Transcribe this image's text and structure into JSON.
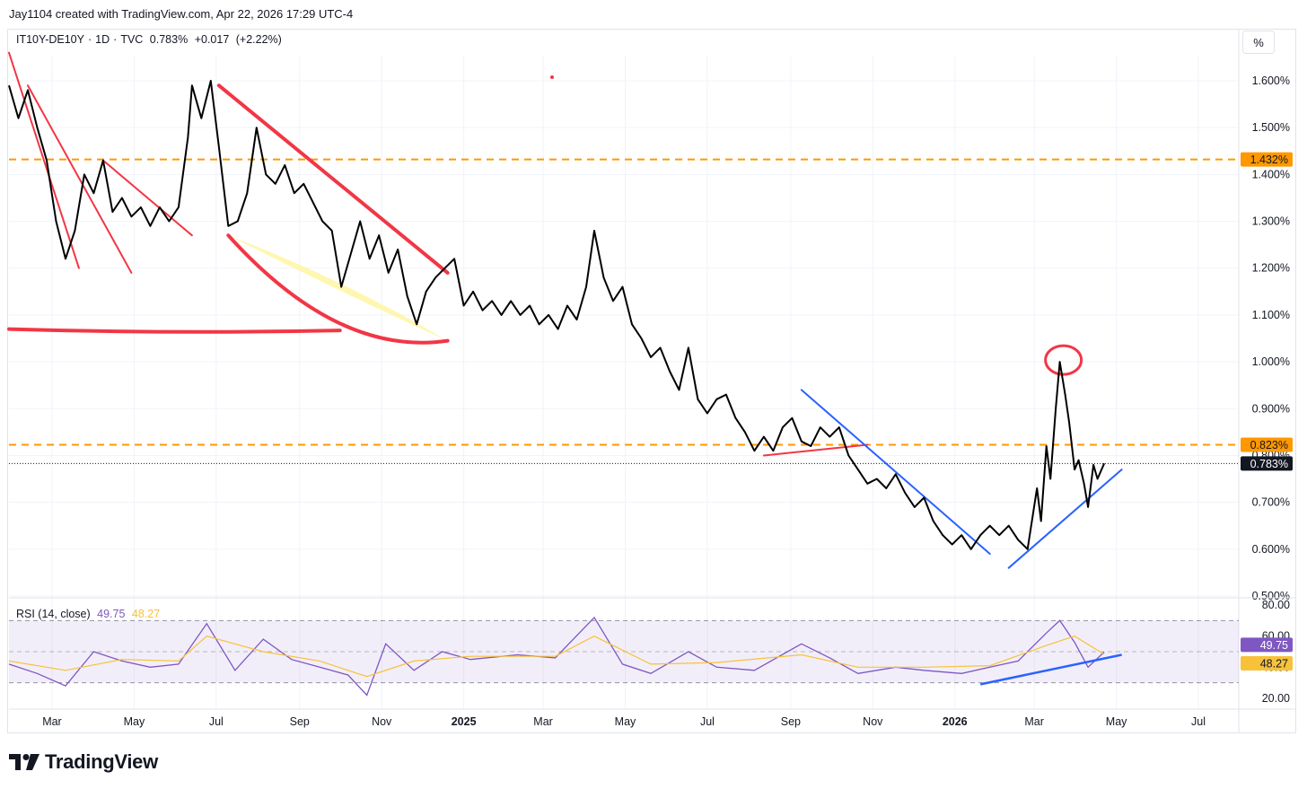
{
  "caption": "Jay1104 created with TradingView.com, Apr 22, 2026 17:29 UTC-4",
  "symbol": {
    "name": "IT10Y-DE10Y",
    "interval": "1D",
    "source": "TVC",
    "last": "0.783%",
    "change": "+0.017",
    "change_pct": "(+2.22%)"
  },
  "toolbar": {
    "percent_label": "%"
  },
  "brand": {
    "name": "TradingView"
  },
  "colors": {
    "price_line": "#000000",
    "rsi_line": "#7e57c2",
    "rsi_ma": "#f7c23a",
    "hline": "#ff9800",
    "trend_red": "#f23645",
    "trend_blue": "#2962ff",
    "fill_yellow": "#fff59d"
  },
  "chart_data": [
    {
      "type": "line",
      "title": "IT10Y-DE10Y · 1D · TVC",
      "y_unit": "%",
      "ylim": [
        0.5,
        1.65
      ],
      "y_ticks": [
        "1.600%",
        "1.500%",
        "1.400%",
        "1.300%",
        "1.200%",
        "1.100%",
        "1.000%",
        "0.900%",
        "0.800%",
        "0.700%",
        "0.600%",
        "0.500%"
      ],
      "x_ticks": [
        "Mar",
        "May",
        "Jul",
        "Sep",
        "Nov",
        "2025",
        "Mar",
        "May",
        "Jul",
        "Sep",
        "Nov",
        "2026",
        "Mar",
        "May",
        "Jul"
      ],
      "x_range": [
        "2024-01-29",
        "2026-07-31"
      ],
      "series": [
        {
          "points": [
            [
              "2024-01-29",
              1.59
            ],
            [
              "2024-02-05",
              1.52
            ],
            [
              "2024-02-12",
              1.58
            ],
            [
              "2024-02-19",
              1.5
            ],
            [
              "2024-02-26",
              1.43
            ],
            [
              "2024-03-04",
              1.3
            ],
            [
              "2024-03-11",
              1.22
            ],
            [
              "2024-03-18",
              1.28
            ],
            [
              "2024-03-25",
              1.4
            ],
            [
              "2024-04-01",
              1.36
            ],
            [
              "2024-04-08",
              1.43
            ],
            [
              "2024-04-15",
              1.32
            ],
            [
              "2024-04-22",
              1.35
            ],
            [
              "2024-04-29",
              1.31
            ],
            [
              "2024-05-06",
              1.33
            ],
            [
              "2024-05-13",
              1.29
            ],
            [
              "2024-05-20",
              1.33
            ],
            [
              "2024-05-27",
              1.3
            ],
            [
              "2024-06-03",
              1.33
            ],
            [
              "2024-06-10",
              1.48
            ],
            [
              "2024-06-13",
              1.59
            ],
            [
              "2024-06-20",
              1.52
            ],
            [
              "2024-06-27",
              1.6
            ],
            [
              "2024-07-03",
              1.46
            ],
            [
              "2024-07-10",
              1.29
            ],
            [
              "2024-07-17",
              1.3
            ],
            [
              "2024-07-24",
              1.36
            ],
            [
              "2024-07-31",
              1.5
            ],
            [
              "2024-08-07",
              1.4
            ],
            [
              "2024-08-14",
              1.38
            ],
            [
              "2024-08-21",
              1.42
            ],
            [
              "2024-08-28",
              1.36
            ],
            [
              "2024-09-04",
              1.38
            ],
            [
              "2024-09-11",
              1.34
            ],
            [
              "2024-09-18",
              1.3
            ],
            [
              "2024-09-25",
              1.28
            ],
            [
              "2024-10-02",
              1.16
            ],
            [
              "2024-10-09",
              1.23
            ],
            [
              "2024-10-16",
              1.3
            ],
            [
              "2024-10-23",
              1.22
            ],
            [
              "2024-10-30",
              1.27
            ],
            [
              "2024-11-06",
              1.19
            ],
            [
              "2024-11-13",
              1.24
            ],
            [
              "2024-11-20",
              1.14
            ],
            [
              "2024-11-27",
              1.08
            ],
            [
              "2024-12-04",
              1.15
            ],
            [
              "2024-12-11",
              1.18
            ],
            [
              "2024-12-18",
              1.2
            ],
            [
              "2024-12-25",
              1.22
            ],
            [
              "2025-01-01",
              1.12
            ],
            [
              "2025-01-08",
              1.15
            ],
            [
              "2025-01-15",
              1.11
            ],
            [
              "2025-01-22",
              1.13
            ],
            [
              "2025-01-29",
              1.1
            ],
            [
              "2025-02-05",
              1.13
            ],
            [
              "2025-02-12",
              1.1
            ],
            [
              "2025-02-19",
              1.12
            ],
            [
              "2025-02-26",
              1.08
            ],
            [
              "2025-03-05",
              1.1
            ],
            [
              "2025-03-12",
              1.07
            ],
            [
              "2025-03-19",
              1.12
            ],
            [
              "2025-03-26",
              1.09
            ],
            [
              "2025-04-02",
              1.16
            ],
            [
              "2025-04-08",
              1.28
            ],
            [
              "2025-04-15",
              1.18
            ],
            [
              "2025-04-22",
              1.13
            ],
            [
              "2025-04-29",
              1.16
            ],
            [
              "2025-05-06",
              1.08
            ],
            [
              "2025-05-13",
              1.05
            ],
            [
              "2025-05-20",
              1.01
            ],
            [
              "2025-05-27",
              1.03
            ],
            [
              "2025-06-03",
              0.98
            ],
            [
              "2025-06-10",
              0.94
            ],
            [
              "2025-06-17",
              1.03
            ],
            [
              "2025-06-24",
              0.92
            ],
            [
              "2025-07-01",
              0.89
            ],
            [
              "2025-07-08",
              0.92
            ],
            [
              "2025-07-15",
              0.93
            ],
            [
              "2025-07-22",
              0.88
            ],
            [
              "2025-07-29",
              0.85
            ],
            [
              "2025-08-05",
              0.81
            ],
            [
              "2025-08-12",
              0.84
            ],
            [
              "2025-08-19",
              0.81
            ],
            [
              "2025-08-26",
              0.86
            ],
            [
              "2025-09-02",
              0.88
            ],
            [
              "2025-09-09",
              0.83
            ],
            [
              "2025-09-16",
              0.82
            ],
            [
              "2025-09-23",
              0.86
            ],
            [
              "2025-09-30",
              0.84
            ],
            [
              "2025-10-07",
              0.86
            ],
            [
              "2025-10-14",
              0.8
            ],
            [
              "2025-10-21",
              0.77
            ],
            [
              "2025-10-28",
              0.74
            ],
            [
              "2025-11-04",
              0.75
            ],
            [
              "2025-11-11",
              0.73
            ],
            [
              "2025-11-18",
              0.76
            ],
            [
              "2025-11-25",
              0.72
            ],
            [
              "2025-12-02",
              0.69
            ],
            [
              "2025-12-09",
              0.71
            ],
            [
              "2025-12-16",
              0.66
            ],
            [
              "2025-12-23",
              0.63
            ],
            [
              "2025-12-30",
              0.61
            ],
            [
              "2026-01-06",
              0.63
            ],
            [
              "2026-01-13",
              0.6
            ],
            [
              "2026-01-20",
              0.63
            ],
            [
              "2026-01-27",
              0.65
            ],
            [
              "2026-02-03",
              0.63
            ],
            [
              "2026-02-10",
              0.65
            ],
            [
              "2026-02-17",
              0.62
            ],
            [
              "2026-02-24",
              0.6
            ],
            [
              "2026-03-03",
              0.73
            ],
            [
              "2026-03-06",
              0.66
            ],
            [
              "2026-03-10",
              0.82
            ],
            [
              "2026-03-13",
              0.75
            ],
            [
              "2026-03-17",
              0.9
            ],
            [
              "2026-03-20",
              1.0
            ],
            [
              "2026-03-24",
              0.93
            ],
            [
              "2026-03-27",
              0.87
            ],
            [
              "2026-03-31",
              0.77
            ],
            [
              "2026-04-03",
              0.79
            ],
            [
              "2026-04-07",
              0.74
            ],
            [
              "2026-04-10",
              0.69
            ],
            [
              "2026-04-14",
              0.78
            ],
            [
              "2026-04-17",
              0.75
            ],
            [
              "2026-04-22",
              0.783
            ]
          ]
        }
      ],
      "price_labels": [
        {
          "value": 1.432,
          "label": "1.432%",
          "color": "#ff9800"
        },
        {
          "value": 0.823,
          "label": "0.823%",
          "color": "#ff9800"
        },
        {
          "value": 0.783,
          "label": "0.783%",
          "color": "#131722"
        }
      ],
      "horizontal_lines": [
        {
          "value": 1.432,
          "color": "#ff9800",
          "style": "dashed"
        },
        {
          "value": 0.823,
          "color": "#ff9800",
          "style": "dashed"
        }
      ],
      "drawings": [
        {
          "kind": "trendline",
          "color": "#f23645",
          "points": [
            [
              "2024-01-29",
              1.66
            ],
            [
              "2024-03-21",
              1.2
            ]
          ]
        },
        {
          "kind": "trendline",
          "color": "#f23645",
          "points": [
            [
              "2024-02-12",
              1.59
            ],
            [
              "2024-04-29",
              1.19
            ]
          ]
        },
        {
          "kind": "trendline",
          "color": "#f23645",
          "points": [
            [
              "2024-04-08",
              1.43
            ],
            [
              "2024-06-13",
              1.27
            ]
          ]
        },
        {
          "kind": "trendline",
          "color": "#f23645",
          "points": [
            [
              "2024-07-03",
              1.59
            ],
            [
              "2024-12-20",
              1.19
            ]
          ]
        },
        {
          "kind": "curve",
          "color": "#f23645",
          "points": [
            [
              "2024-07-10",
              1.27
            ],
            [
              "2024-12-20",
              1.045
            ]
          ]
        },
        {
          "kind": "curve",
          "color": "#f23645",
          "points": [
            [
              "2024-01-29",
              1.07
            ],
            [
              "2024-10-01",
              1.067
            ]
          ]
        },
        {
          "kind": "trendline",
          "color": "#f23645",
          "points": [
            [
              "2025-08-12",
              0.8
            ],
            [
              "2025-10-28",
              0.823
            ]
          ]
        },
        {
          "kind": "trendline",
          "color": "#2962ff",
          "points": [
            [
              "2025-09-09",
              0.94
            ],
            [
              "2026-01-27",
              0.59
            ]
          ]
        },
        {
          "kind": "trendline",
          "color": "#2962ff",
          "points": [
            [
              "2026-02-10",
              0.56
            ],
            [
              "2026-05-05",
              0.77
            ]
          ]
        },
        {
          "kind": "ellipse",
          "color": "#f23645",
          "points": [
            [
              "2026-03-20",
              1.0
            ]
          ]
        }
      ]
    },
    {
      "type": "line",
      "title": "RSI (14, close)",
      "ylim": [
        10,
        80
      ],
      "y_ticks": [
        "80.00",
        "60.00",
        "40.00",
        "20.00"
      ],
      "bands": [
        30,
        70
      ],
      "last_values": {
        "rsi": "49.75",
        "ma": "48.27"
      },
      "series": [
        {
          "name": "RSI",
          "color": "#7e57c2",
          "points": [
            [
              "2024-01-29",
              42
            ],
            [
              "2024-02-19",
              36
            ],
            [
              "2024-03-11",
              28
            ],
            [
              "2024-04-01",
              50
            ],
            [
              "2024-04-22",
              44
            ],
            [
              "2024-05-13",
              40
            ],
            [
              "2024-06-03",
              42
            ],
            [
              "2024-06-24",
              68
            ],
            [
              "2024-07-15",
              38
            ],
            [
              "2024-08-05",
              58
            ],
            [
              "2024-08-26",
              45
            ],
            [
              "2024-09-16",
              40
            ],
            [
              "2024-10-07",
              35
            ],
            [
              "2024-10-21",
              22
            ],
            [
              "2024-11-04",
              55
            ],
            [
              "2024-11-25",
              38
            ],
            [
              "2024-12-16",
              50
            ],
            [
              "2025-01-06",
              45
            ],
            [
              "2025-02-10",
              48
            ],
            [
              "2025-03-10",
              46
            ],
            [
              "2025-04-08",
              72
            ],
            [
              "2025-04-29",
              42
            ],
            [
              "2025-05-20",
              36
            ],
            [
              "2025-06-17",
              50
            ],
            [
              "2025-07-08",
              40
            ],
            [
              "2025-08-05",
              38
            ],
            [
              "2025-09-09",
              55
            ],
            [
              "2025-09-30",
              46
            ],
            [
              "2025-10-21",
              36
            ],
            [
              "2025-11-18",
              40
            ],
            [
              "2025-12-09",
              38
            ],
            [
              "2026-01-06",
              36
            ],
            [
              "2026-01-27",
              40
            ],
            [
              "2026-02-17",
              44
            ],
            [
              "2026-03-10",
              62
            ],
            [
              "2026-03-20",
              70
            ],
            [
              "2026-03-31",
              56
            ],
            [
              "2026-04-10",
              40
            ],
            [
              "2026-04-22",
              49.75
            ]
          ]
        },
        {
          "name": "RSI-based MA",
          "color": "#f7c23a",
          "points": [
            [
              "2024-01-29",
              44
            ],
            [
              "2024-03-11",
              38
            ],
            [
              "2024-04-22",
              45
            ],
            [
              "2024-06-03",
              44
            ],
            [
              "2024-06-24",
              60
            ],
            [
              "2024-08-05",
              50
            ],
            [
              "2024-09-16",
              44
            ],
            [
              "2024-10-21",
              34
            ],
            [
              "2024-11-25",
              44
            ],
            [
              "2025-01-06",
              47
            ],
            [
              "2025-03-10",
              47
            ],
            [
              "2025-04-08",
              60
            ],
            [
              "2025-05-20",
              42
            ],
            [
              "2025-07-08",
              43
            ],
            [
              "2025-09-09",
              48
            ],
            [
              "2025-10-21",
              40
            ],
            [
              "2025-12-09",
              40
            ],
            [
              "2026-01-27",
              41
            ],
            [
              "2026-03-10",
              54
            ],
            [
              "2026-03-31",
              60
            ],
            [
              "2026-04-22",
              48.27
            ]
          ]
        }
      ],
      "drawings": [
        {
          "kind": "trendline",
          "color": "#2962ff",
          "points": [
            [
              "2026-01-20",
              29
            ],
            [
              "2026-05-05",
              48
            ]
          ]
        }
      ]
    }
  ]
}
